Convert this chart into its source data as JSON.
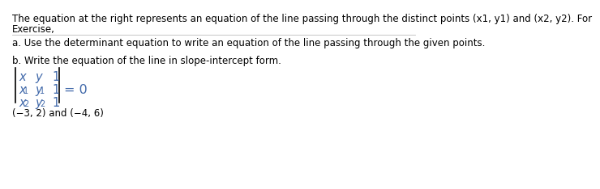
{
  "bg_color": "#ffffff",
  "text_color": "#000000",
  "blue_color": "#4169AA",
  "line1": "The equation at the right represents an equation of the line passing through the distinct points (x1, y1) and (x2, y2). For",
  "line2": "Exercise,",
  "part_a": "a. Use the determinant equation to write an equation of the line passing through the given points.",
  "part_b": "b. Write the equation of the line in slope-intercept form.",
  "points": "(−3, 2) and (−4, 6)",
  "font_size": 8.5,
  "matrix_font_size": 10.5,
  "sub_font_size": 7.0
}
